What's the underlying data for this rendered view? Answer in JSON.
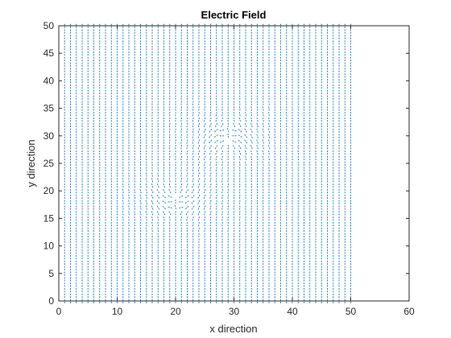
{
  "chart_data": {
    "type": "quiver",
    "title": "Electric Field",
    "xlabel": "x direction",
    "ylabel": "y direction",
    "xlim": [
      0,
      60
    ],
    "ylim": [
      0,
      50
    ],
    "xticks": [
      0,
      10,
      20,
      30,
      40,
      50,
      60
    ],
    "yticks": [
      0,
      5,
      10,
      15,
      20,
      25,
      30,
      35,
      40,
      45,
      50
    ],
    "grid": false,
    "box": true,
    "series_color": "#0072BD",
    "arrow_style": "dashed",
    "field_grid": {
      "x_start": 1,
      "x_end": 50,
      "x_step": 1,
      "y_start": 0,
      "y_end": 50,
      "y_step": 1
    },
    "charges": [
      {
        "x": 20,
        "y": 19
      },
      {
        "x": 29,
        "y": 29
      }
    ],
    "background_field_direction": "vertical"
  }
}
